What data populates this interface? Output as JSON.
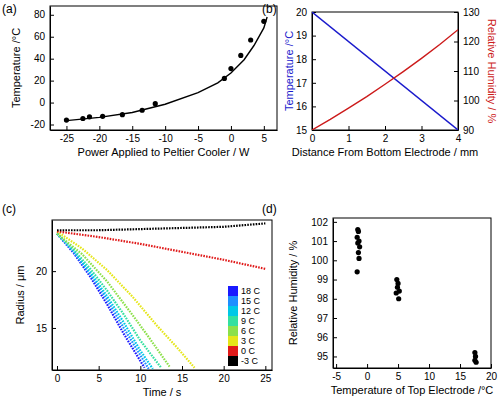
{
  "chart_data": [
    {
      "type": "scatter",
      "title": "(a)",
      "xlabel": "Power Applied to Peltier Cooler / W",
      "ylabel": "Temperature /°C",
      "xlim": [
        -27.5,
        7
      ],
      "ylim": [
        -25,
        88
      ],
      "xticks": [
        -25,
        -20,
        -15,
        -10,
        -5,
        0,
        5
      ],
      "yticks": [
        -20,
        0,
        20,
        40,
        60,
        80
      ],
      "series": [
        {
          "type": "scatter",
          "marker": "circle",
          "color": "#000000",
          "x": [
            -25,
            -22.5,
            -21.5,
            -19.5,
            -16.5,
            -13.5,
            -11.5,
            -1,
            0,
            1.5,
            3,
            5
          ],
          "values": [
            -16,
            -14.5,
            -13,
            -12.5,
            -11,
            -7,
            -1,
            22,
            31,
            43,
            57,
            74
          ]
        },
        {
          "type": "line",
          "line_style": "solid",
          "color": "#000000",
          "x": [
            -25,
            -20,
            -15,
            -10,
            -5,
            -2,
            0,
            2,
            3.5,
            5,
            5.5
          ],
          "values": [
            -16.5,
            -13.5,
            -9,
            -1.5,
            9,
            18,
            27,
            39,
            52,
            68,
            78
          ]
        }
      ]
    },
    {
      "type": "line",
      "title": "(b)",
      "xlabel": "Distance From Bottom Electrode / mm",
      "ylabel": "Temperature /°C",
      "y2label": "Relative Humidity / %",
      "xlim": [
        0,
        4
      ],
      "ylim": [
        15,
        20
      ],
      "y2lim": [
        90,
        130
      ],
      "xticks": [
        0,
        1,
        2,
        3,
        4
      ],
      "yticks": [
        15,
        16,
        17,
        18,
        19,
        20
      ],
      "y2ticks": [
        90,
        100,
        110,
        120,
        130
      ],
      "series": [
        {
          "color": "#1a1acc",
          "x": [
            0,
            4
          ],
          "values": [
            20,
            15
          ]
        },
        {
          "color": "#cc1a1a",
          "axis": "y2",
          "x": [
            0,
            0.5,
            1,
            1.5,
            2,
            2.5,
            3,
            3.5,
            4
          ],
          "values": [
            90,
            93.6,
            97.4,
            101.3,
            105.5,
            109.8,
            114.3,
            119,
            124
          ]
        }
      ]
    },
    {
      "type": "line",
      "title": "(c)",
      "line_style": "dotted",
      "legend": "lower right",
      "xlabel": "Time / s",
      "ylabel": "Radius / μm",
      "xlim": [
        -0.6,
        25.8
      ],
      "ylim": [
        11.3,
        24.5
      ],
      "xticks": [
        0,
        5,
        10,
        15,
        20,
        25
      ],
      "yticks": [
        15,
        20
      ],
      "series": [
        {
          "name": "18 C",
          "color": "#1a1aff",
          "x": [
            0,
            2,
            4,
            6,
            8,
            10.5
          ],
          "values": [
            23.3,
            21.6,
            19.5,
            17.1,
            14.5,
            11.5
          ]
        },
        {
          "name": "15 C",
          "color": "#1e8fff",
          "x": [
            0,
            2,
            4,
            6,
            8,
            11
          ],
          "values": [
            23.3,
            21.7,
            19.7,
            17.5,
            15.0,
            11.4
          ]
        },
        {
          "name": "12 C",
          "color": "#00c8e6",
          "x": [
            0,
            2,
            4,
            6,
            8,
            10,
            11.5
          ],
          "values": [
            23.3,
            21.8,
            19.9,
            17.8,
            15.5,
            13,
            11.4
          ]
        },
        {
          "name": "9 C",
          "color": "#33e0a0",
          "x": [
            0,
            2,
            4,
            6,
            8,
            10,
            12.5
          ],
          "values": [
            23.3,
            21.9,
            20.2,
            18.3,
            16.2,
            13.9,
            11.5
          ]
        },
        {
          "name": "6 C",
          "color": "#8ce04a",
          "x": [
            0,
            3,
            6,
            9,
            11,
            13.5
          ],
          "values": [
            23.3,
            21.5,
            19.1,
            16.2,
            14.2,
            11.6
          ]
        },
        {
          "name": "3 C",
          "color": "#e6e619",
          "x": [
            0,
            3,
            6,
            9,
            12,
            14.5,
            16.5
          ],
          "values": [
            23.5,
            22.0,
            20.1,
            17.8,
            15.2,
            13.2,
            11.5
          ]
        },
        {
          "name": "0 C",
          "color": "#e01a1a",
          "x": [
            0,
            5,
            10,
            15,
            20,
            25
          ],
          "values": [
            23.5,
            23.0,
            22.4,
            21.7,
            21.0,
            20.2
          ]
        },
        {
          "name": "-3 C",
          "color": "#000000",
          "x": [
            0,
            5,
            10,
            15,
            20,
            25
          ],
          "values": [
            23.6,
            23.6,
            23.7,
            23.8,
            23.9,
            24.2
          ]
        }
      ]
    },
    {
      "type": "scatter",
      "title": "(d)",
      "xlabel": "Temperature of Top Electrode /°C",
      "ylabel": "Relative Humidity / %",
      "xlim": [
        -5.5,
        20
      ],
      "ylim": [
        94.4,
        102.2
      ],
      "xticks": [
        -5,
        0,
        5,
        10,
        15,
        20
      ],
      "yticks": [
        95,
        96,
        97,
        98,
        99,
        100,
        101,
        102
      ],
      "series": [
        {
          "marker": "circle",
          "color": "#000000",
          "x": [
            -1.5,
            -1.4,
            -1.6,
            -1.3,
            -1.5,
            -1.2,
            -1.4,
            -1.3,
            -1.6,
            4.8,
            5.0,
            4.9,
            5.2,
            4.7,
            5.1,
            17.4,
            17.5,
            17.4,
            17.6
          ],
          "values": [
            101.6,
            101.5,
            101.2,
            101.0,
            100.9,
            100.7,
            100.4,
            100.1,
            99.4,
            99.0,
            98.8,
            98.6,
            98.4,
            98.3,
            98.0,
            95.2,
            95.0,
            94.8,
            94.7
          ]
        }
      ]
    }
  ]
}
